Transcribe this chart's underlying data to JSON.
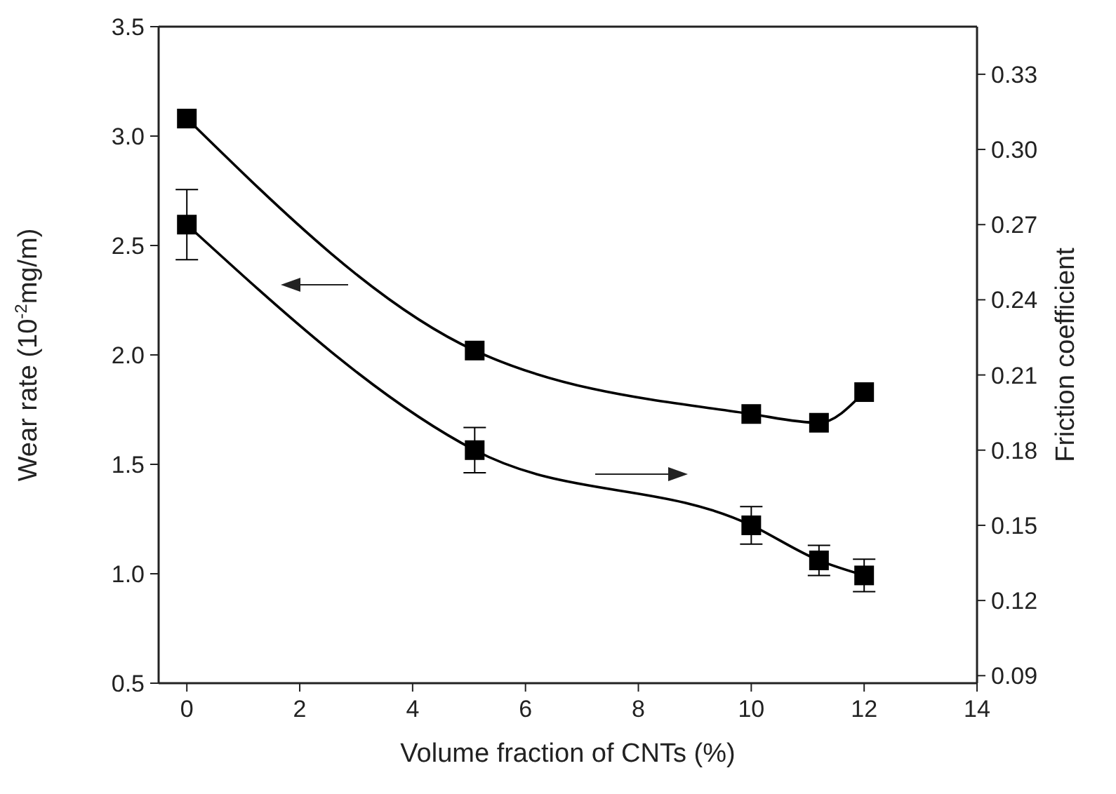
{
  "chart_data": {
    "type": "line",
    "xlabel": "Volume fraction of CNTs (%)",
    "ylabel": "Wear rate (10$^{-2}$mg/m)",
    "y2label": "Friction coefficient",
    "x": [
      0,
      5.1,
      10,
      11.2,
      12
    ],
    "series": [
      {
        "color": "#000000",
        "values": [
          3.08,
          2.02,
          1.73,
          1.69,
          1.83
        ]
      },
      {
        "color": "#000000",
        "axis": "y2",
        "values": [
          0.27,
          0.18,
          0.15,
          0.136,
          0.13
        ],
        "errors": [
          0.014,
          0.009,
          0.0075,
          0.006,
          0.0065
        ]
      }
    ],
    "xlim": [
      -0.5,
      14
    ],
    "xticks": [
      0,
      2,
      4,
      6,
      8,
      10,
      12,
      14
    ],
    "ylim": [
      0.5,
      3.5
    ],
    "yticks": [
      0.5,
      {
        "value": 1,
        "label": "1.0"
      },
      1.5,
      {
        "value": 2,
        "label": "2.0"
      },
      2.5,
      {
        "value": 3,
        "label": "3.0"
      },
      3.5
    ],
    "y2lim": [
      0.087,
      0.349
    ],
    "y2ticks": [
      0.09,
      0.12,
      0.15,
      0.18,
      0.21,
      0.24,
      0.27,
      {
        "value": 0.3,
        "label": "0.30"
      },
      0.33
    ],
    "marker": "square",
    "line_style": "solid"
  }
}
